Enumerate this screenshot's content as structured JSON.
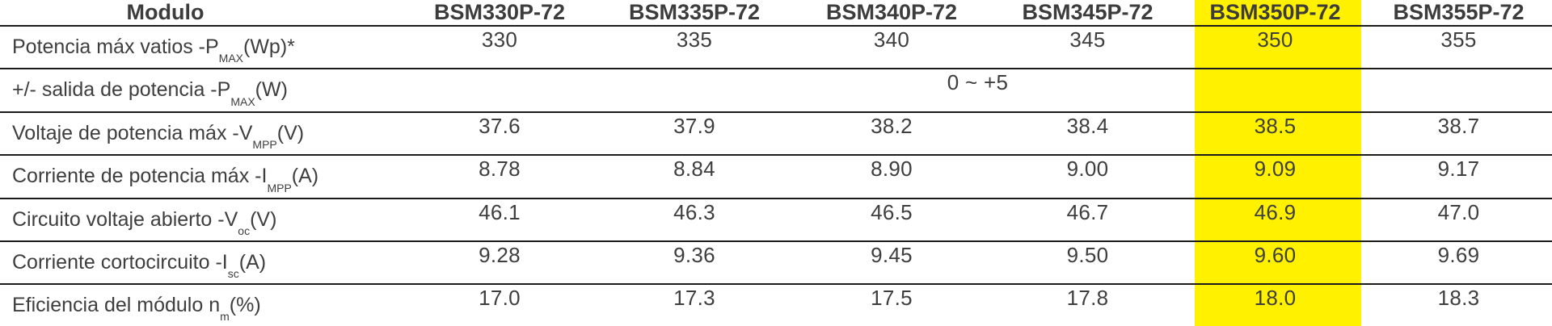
{
  "table": {
    "corner_header": "Modulo",
    "columns": [
      "BSM330P-72",
      "BSM335P-72",
      "BSM340P-72",
      "BSM345P-72",
      "BSM350P-72",
      "BSM355P-72"
    ],
    "highlighted_column": "BSM350P-72",
    "highlight_color": "#FFF100",
    "line_color": "#1b1b1b",
    "text_color": "#3e3e3e",
    "rows": [
      {
        "label_pre": "Potencia máx vatios -P ",
        "label_sub": "MAX",
        "label_post": " (Wp)*",
        "values": [
          "330",
          "335",
          "340",
          "345",
          "350",
          "355"
        ]
      },
      {
        "label_pre": "+/- salida de potencia -P ",
        "label_sub": "MAX",
        "label_post": " (W)",
        "merged_value": "0 ~ +5"
      },
      {
        "label_pre": "Voltaje de potencia máx -V ",
        "label_sub": "MPP",
        "label_post": " (V)",
        "values": [
          "37.6",
          "37.9",
          "38.2",
          "38.4",
          "38.5",
          "38.7"
        ]
      },
      {
        "label_pre": "Corriente de potencia máx -I ",
        "label_sub": "MPP",
        "label_post": " (A)",
        "values": [
          "8.78",
          "8.84",
          "8.90",
          "9.00",
          "9.09",
          "9.17"
        ]
      },
      {
        "label_pre": "Circuito voltaje abierto -V ",
        "label_sub": "oc",
        "label_post": " (V)",
        "values": [
          "46.1",
          "46.3",
          "46.5",
          "46.7",
          "46.9",
          "47.0"
        ]
      },
      {
        "label_pre": "Corriente cortocircuito -I ",
        "label_sub": "sc",
        "label_post": " (A)",
        "values": [
          "9.28",
          "9.36",
          "9.45",
          "9.50",
          "9.60",
          "9.69"
        ]
      },
      {
        "label_pre": "Eficiencia del módulo n",
        "label_sub": "m",
        "label_post": " (%)",
        "values": [
          "17.0",
          "17.3",
          "17.5",
          "17.8",
          "18.0",
          "18.3"
        ]
      }
    ]
  }
}
